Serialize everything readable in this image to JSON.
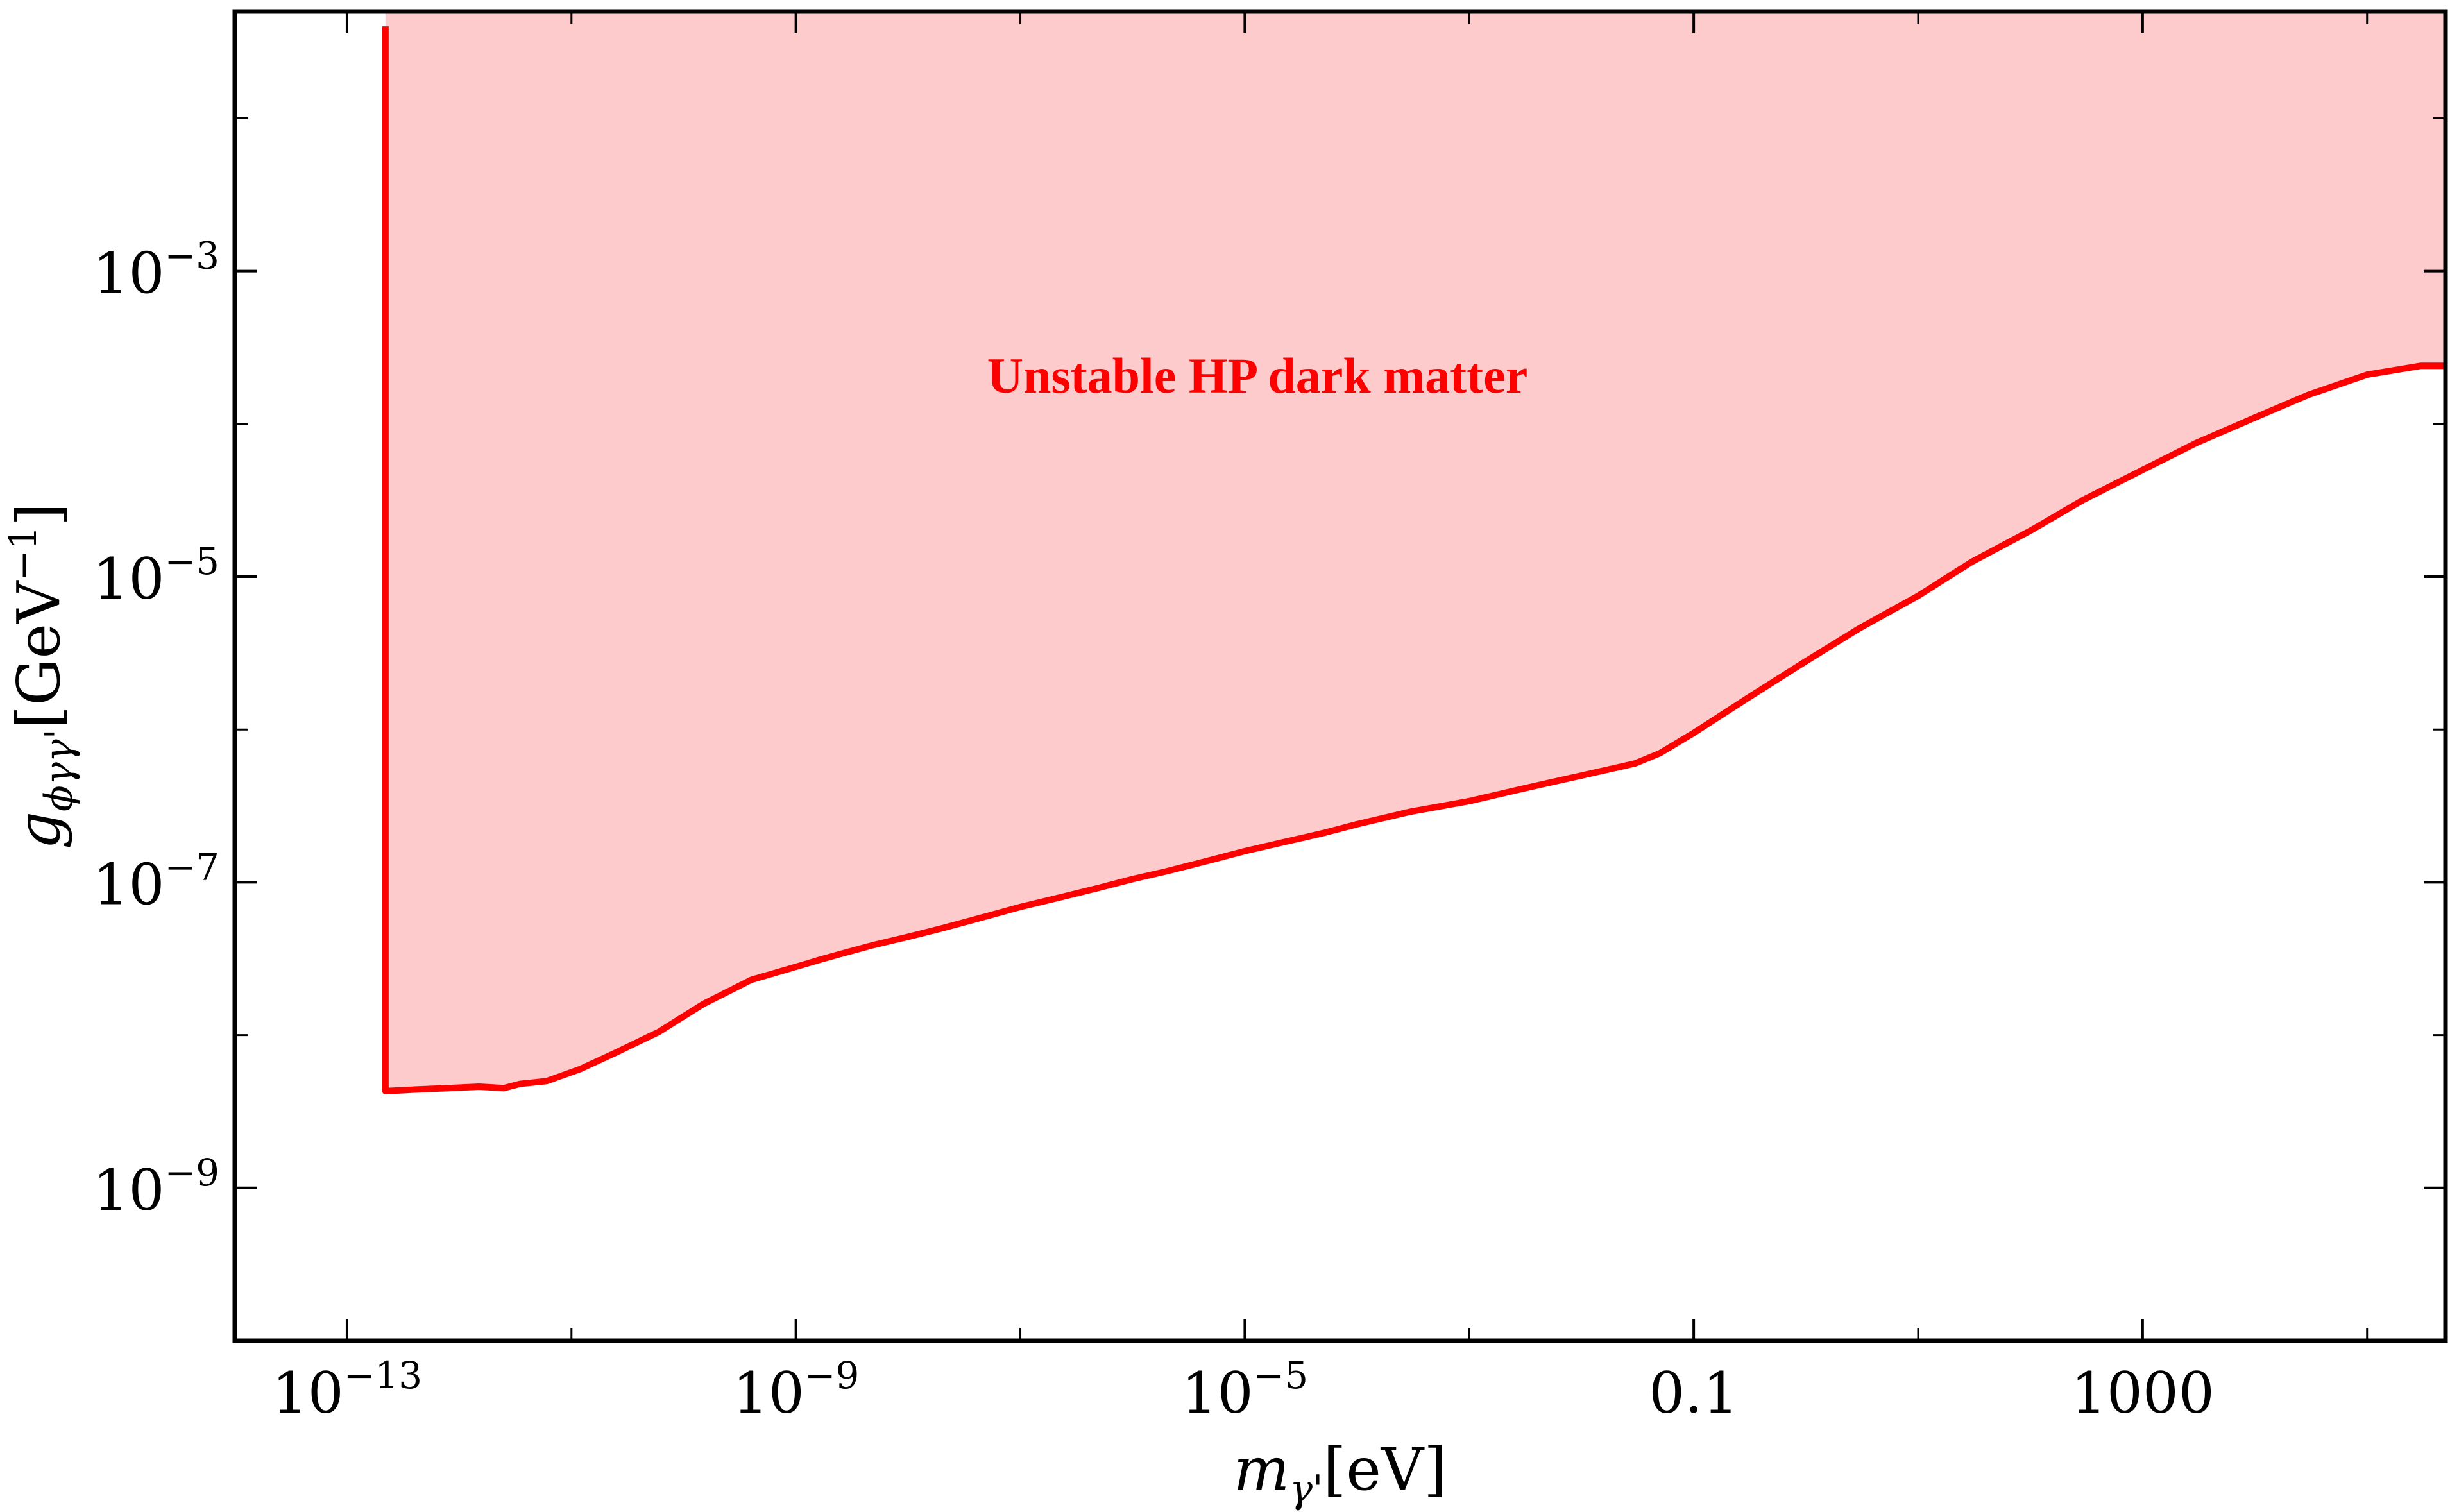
{
  "colors": {
    "boundary": "#ff0000",
    "fill": "#fdcbcb",
    "frame": "#000000",
    "annotation": "#ff0000"
  },
  "chart_data": {
    "type": "area",
    "xscale": "log",
    "yscale": "log",
    "xlim": [
      1e-14,
      500000.0
    ],
    "ylim": [
      1e-10,
      0.05
    ],
    "grid": false,
    "xlabel": {
      "symbol": "m",
      "subscript": "γ'",
      "unit": "[eV]"
    },
    "ylabel": {
      "symbol": "g",
      "subscript": "ϕγγ'",
      "unit": "[GeV",
      "unit_sup": "−1",
      "unit_close": "]"
    },
    "xticks": [
      {
        "value": 1e-13,
        "base": "10",
        "exp": "−13"
      },
      {
        "value": 1e-09,
        "base": "10",
        "exp": "−9"
      },
      {
        "value": 1e-05,
        "base": "10",
        "exp": "−5"
      },
      {
        "value": 0.1,
        "base": "0.1",
        "exp": ""
      },
      {
        "value": 1000,
        "base": "1000",
        "exp": ""
      }
    ],
    "xminor": [
      1e-11,
      1e-07,
      0.001,
      10,
      100000
    ],
    "yticks": [
      {
        "value": 0.001,
        "base": "10",
        "exp": "−3"
      },
      {
        "value": 1e-05,
        "base": "10",
        "exp": "−5"
      },
      {
        "value": 1e-07,
        "base": "10",
        "exp": "−7"
      },
      {
        "value": 1e-09,
        "base": "10",
        "exp": "−9"
      }
    ],
    "yminor": [
      0.01,
      0.0001,
      1e-06,
      1e-08,
      1e-10
    ],
    "annotation": "Unstable HP dark matter",
    "series": [
      {
        "region": "above-curve",
        "x": [
          2.2e-13,
          2.2e-13,
          4e-13,
          8e-13,
          1.5e-12,
          2.5e-12,
          3.5e-12,
          6e-12,
          1.2e-11,
          2.5e-11,
          6e-11,
          1.5e-10,
          4e-10,
          1e-09,
          1.6e-09,
          2.5e-09,
          5e-09,
          1e-08,
          2e-08,
          5e-08,
          1e-07,
          2e-07,
          5e-07,
          1e-06,
          2e-06,
          5e-06,
          1e-05,
          2e-05,
          5e-05,
          0.0001,
          0.0003,
          0.001,
          0.003,
          0.01,
          0.03,
          0.05,
          0.1,
          0.3,
          1,
          3,
          10,
          30,
          100,
          300,
          1000,
          3000,
          10000.0,
          30000.0,
          100000.0,
          300000.0
        ],
        "y": [
          0.04,
          4.3e-09,
          4.4e-09,
          4.5e-09,
          4.6e-09,
          4.5e-09,
          4.8e-09,
          5e-09,
          6e-09,
          7.7e-09,
          1.05e-08,
          1.6e-08,
          2.3e-08,
          2.8e-08,
          3.1e-08,
          3.4e-08,
          3.9e-08,
          4.4e-08,
          5e-08,
          6e-08,
          6.9e-08,
          7.8e-08,
          9.2e-08,
          1.05e-07,
          1.18e-07,
          1.4e-07,
          1.6e-07,
          1.8e-07,
          2.1e-07,
          2.4e-07,
          2.9e-07,
          3.4e-07,
          4.1e-07,
          5e-07,
          6e-07,
          7e-07,
          9.5e-07,
          1.6e-06,
          2.8e-06,
          4.6e-06,
          7.5e-06,
          1.25e-05,
          2e-05,
          3.2e-05,
          5e-05,
          7.5e-05,
          0.00011,
          0.000155,
          0.00021,
          0.00024
        ]
      }
    ]
  }
}
